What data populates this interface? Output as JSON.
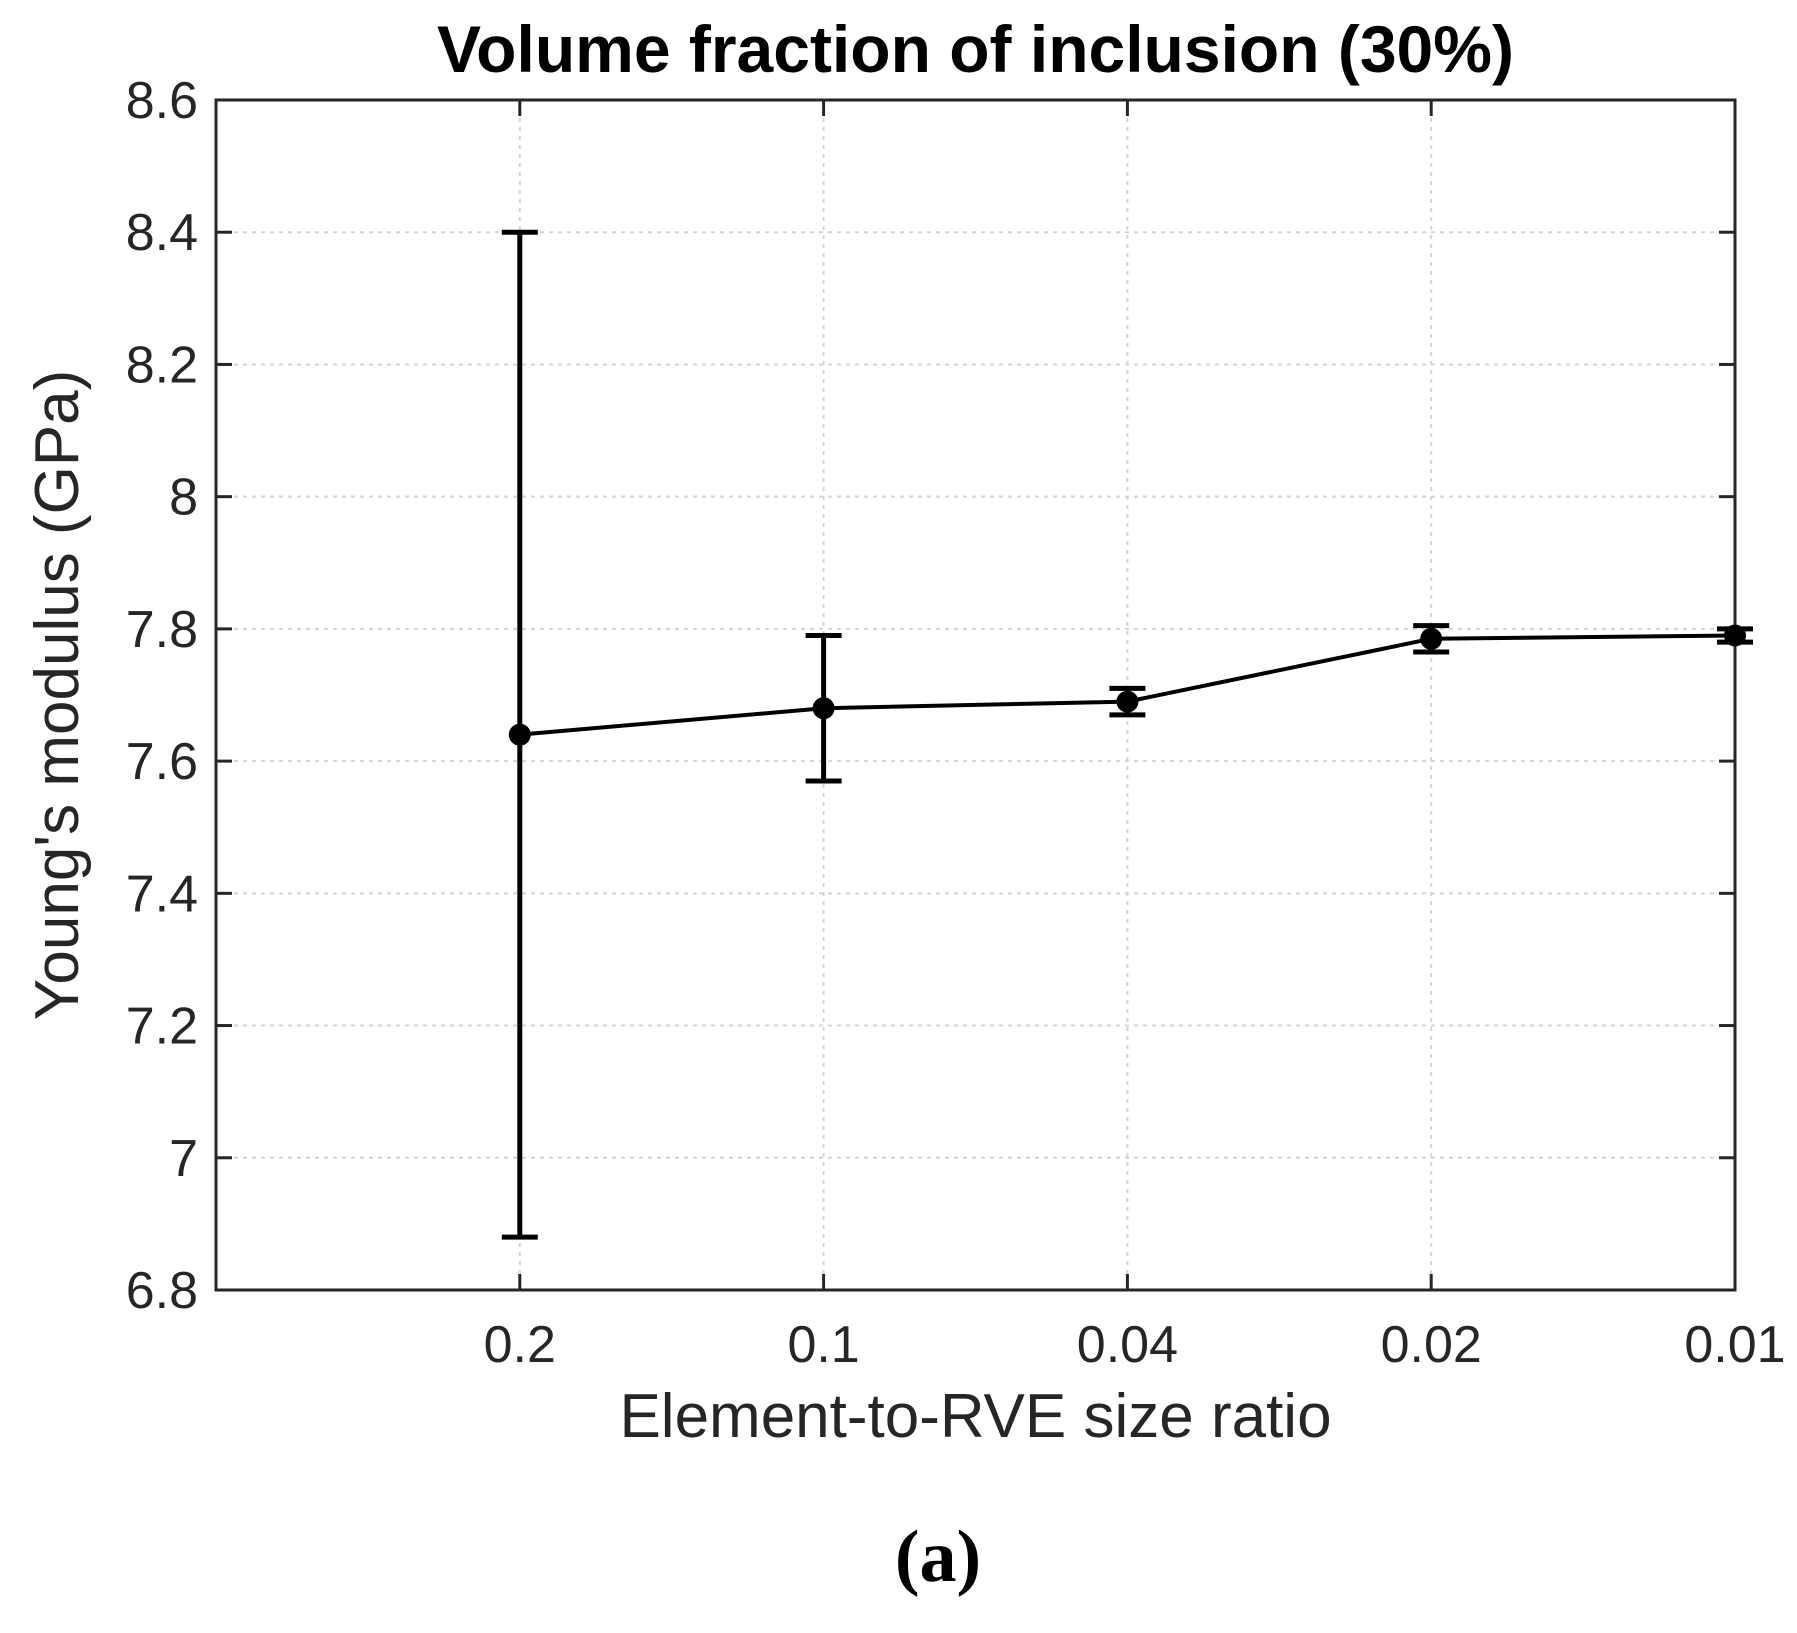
{
  "figure": {
    "caption": "(a)"
  },
  "chart_data": {
    "type": "line",
    "subtype": "errorbar",
    "title": "Volume fraction of inclusion (30%)",
    "xlabel": "Element-to-RVE size ratio",
    "ylabel": "Young's modulus (GPa)",
    "categories": [
      "0.2",
      "0.1",
      "0.04",
      "0.02",
      "0.01"
    ],
    "series": [
      {
        "name": "Young's modulus mean",
        "values": [
          7.64,
          7.68,
          7.69,
          7.785,
          7.79
        ],
        "errors": [
          0.76,
          0.11,
          0.02,
          0.02,
          0.01
        ]
      }
    ],
    "ylim": [
      6.8,
      8.6
    ],
    "yticks": [
      6.8,
      7.0,
      7.2,
      7.4,
      7.6,
      7.8,
      8.0,
      8.2,
      8.4,
      8.6
    ],
    "ytick_labels": [
      "6.8",
      "7",
      "7.2",
      "7.4",
      "7.6",
      "7.8",
      "8",
      "8.2",
      "8.4",
      "8.6"
    ],
    "grid": true,
    "legend_position": "none",
    "marker": "filled-circle",
    "colors": {
      "line": "#000000",
      "marker": "#000000",
      "errorbar": "#000000",
      "axis": "#262626",
      "grid": "#d4d4d4",
      "background": "#ffffff",
      "title": "#000000"
    }
  }
}
